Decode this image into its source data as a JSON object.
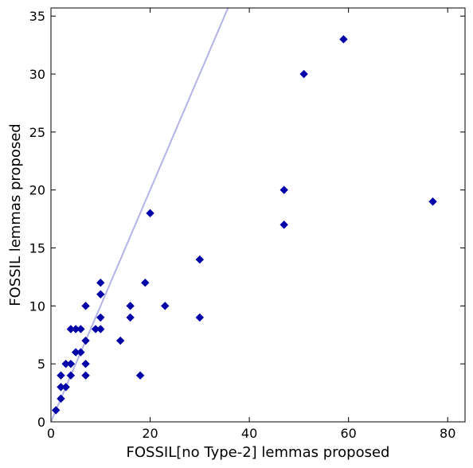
{
  "chart_data": {
    "type": "scatter",
    "xlabel": "FOSSIL[no Type-2] lemmas proposed",
    "ylabel": "FOSSIL lemmas proposed",
    "xlim": [
      0,
      83.5
    ],
    "ylim": [
      0,
      35.7
    ],
    "xticks": [
      0,
      20,
      40,
      60,
      80
    ],
    "yticks": [
      0,
      5,
      10,
      15,
      20,
      25,
      30,
      35
    ],
    "grid": false,
    "legend": "none",
    "marker": "diamond",
    "colors": {
      "points": "#0000a8",
      "reference_line": "#b3b3e6"
    },
    "reference_line": {
      "x": [
        0,
        35.7
      ],
      "y": [
        0,
        35.7
      ]
    },
    "series": [
      {
        "points": [
          [
            1,
            1
          ],
          [
            2,
            2
          ],
          [
            2,
            3
          ],
          [
            2,
            4
          ],
          [
            3,
            3
          ],
          [
            3,
            5
          ],
          [
            4,
            4
          ],
          [
            4,
            5
          ],
          [
            4,
            8
          ],
          [
            5,
            6
          ],
          [
            5,
            8
          ],
          [
            6,
            6
          ],
          [
            6,
            8
          ],
          [
            7,
            4
          ],
          [
            7,
            5
          ],
          [
            7,
            7
          ],
          [
            7,
            10
          ],
          [
            9,
            8
          ],
          [
            10,
            8
          ],
          [
            10,
            9
          ],
          [
            10,
            11
          ],
          [
            10,
            12
          ],
          [
            14,
            7
          ],
          [
            16,
            9
          ],
          [
            16,
            10
          ],
          [
            18,
            4
          ],
          [
            19,
            12
          ],
          [
            20,
            18
          ],
          [
            23,
            10
          ],
          [
            30,
            9
          ],
          [
            30,
            14
          ],
          [
            47,
            17
          ],
          [
            47,
            20
          ],
          [
            51,
            30
          ],
          [
            59,
            33
          ],
          [
            77,
            19
          ]
        ]
      }
    ]
  }
}
